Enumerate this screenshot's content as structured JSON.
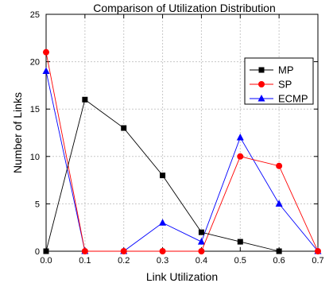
{
  "chart_data": {
    "type": "line",
    "title": "Comparison of Utilization Distribution",
    "xlabel": "Link Utilization",
    "ylabel": "Number of Links",
    "xlim": [
      0.0,
      0.7
    ],
    "ylim": [
      0,
      25
    ],
    "xticks": [
      "0.0",
      "0.1",
      "0.2",
      "0.3",
      "0.4",
      "0.5",
      "0.6",
      "0.7"
    ],
    "yticks": [
      "0",
      "5",
      "10",
      "15",
      "20",
      "25"
    ],
    "grid": true,
    "legend_position": "top-right",
    "series": [
      {
        "name": "MP",
        "marker": "square",
        "color": "#000000",
        "x": [
          0.0,
          0.1,
          0.2,
          0.3,
          0.4,
          0.5,
          0.6
        ],
        "y": [
          0,
          16,
          13,
          8,
          2,
          1,
          0
        ]
      },
      {
        "name": "SP",
        "marker": "circle",
        "color": "#ff0000",
        "x": [
          0.0,
          0.1,
          0.2,
          0.3,
          0.4,
          0.5,
          0.6,
          0.7
        ],
        "y": [
          21,
          0,
          0,
          0,
          0,
          10,
          9,
          0
        ]
      },
      {
        "name": "ECMP",
        "marker": "triangle",
        "color": "#0000ff",
        "x": [
          0.0,
          0.1,
          0.2,
          0.3,
          0.4,
          0.5,
          0.6,
          0.7
        ],
        "y": [
          19,
          0,
          0,
          3,
          1,
          12,
          5,
          0
        ]
      }
    ]
  }
}
